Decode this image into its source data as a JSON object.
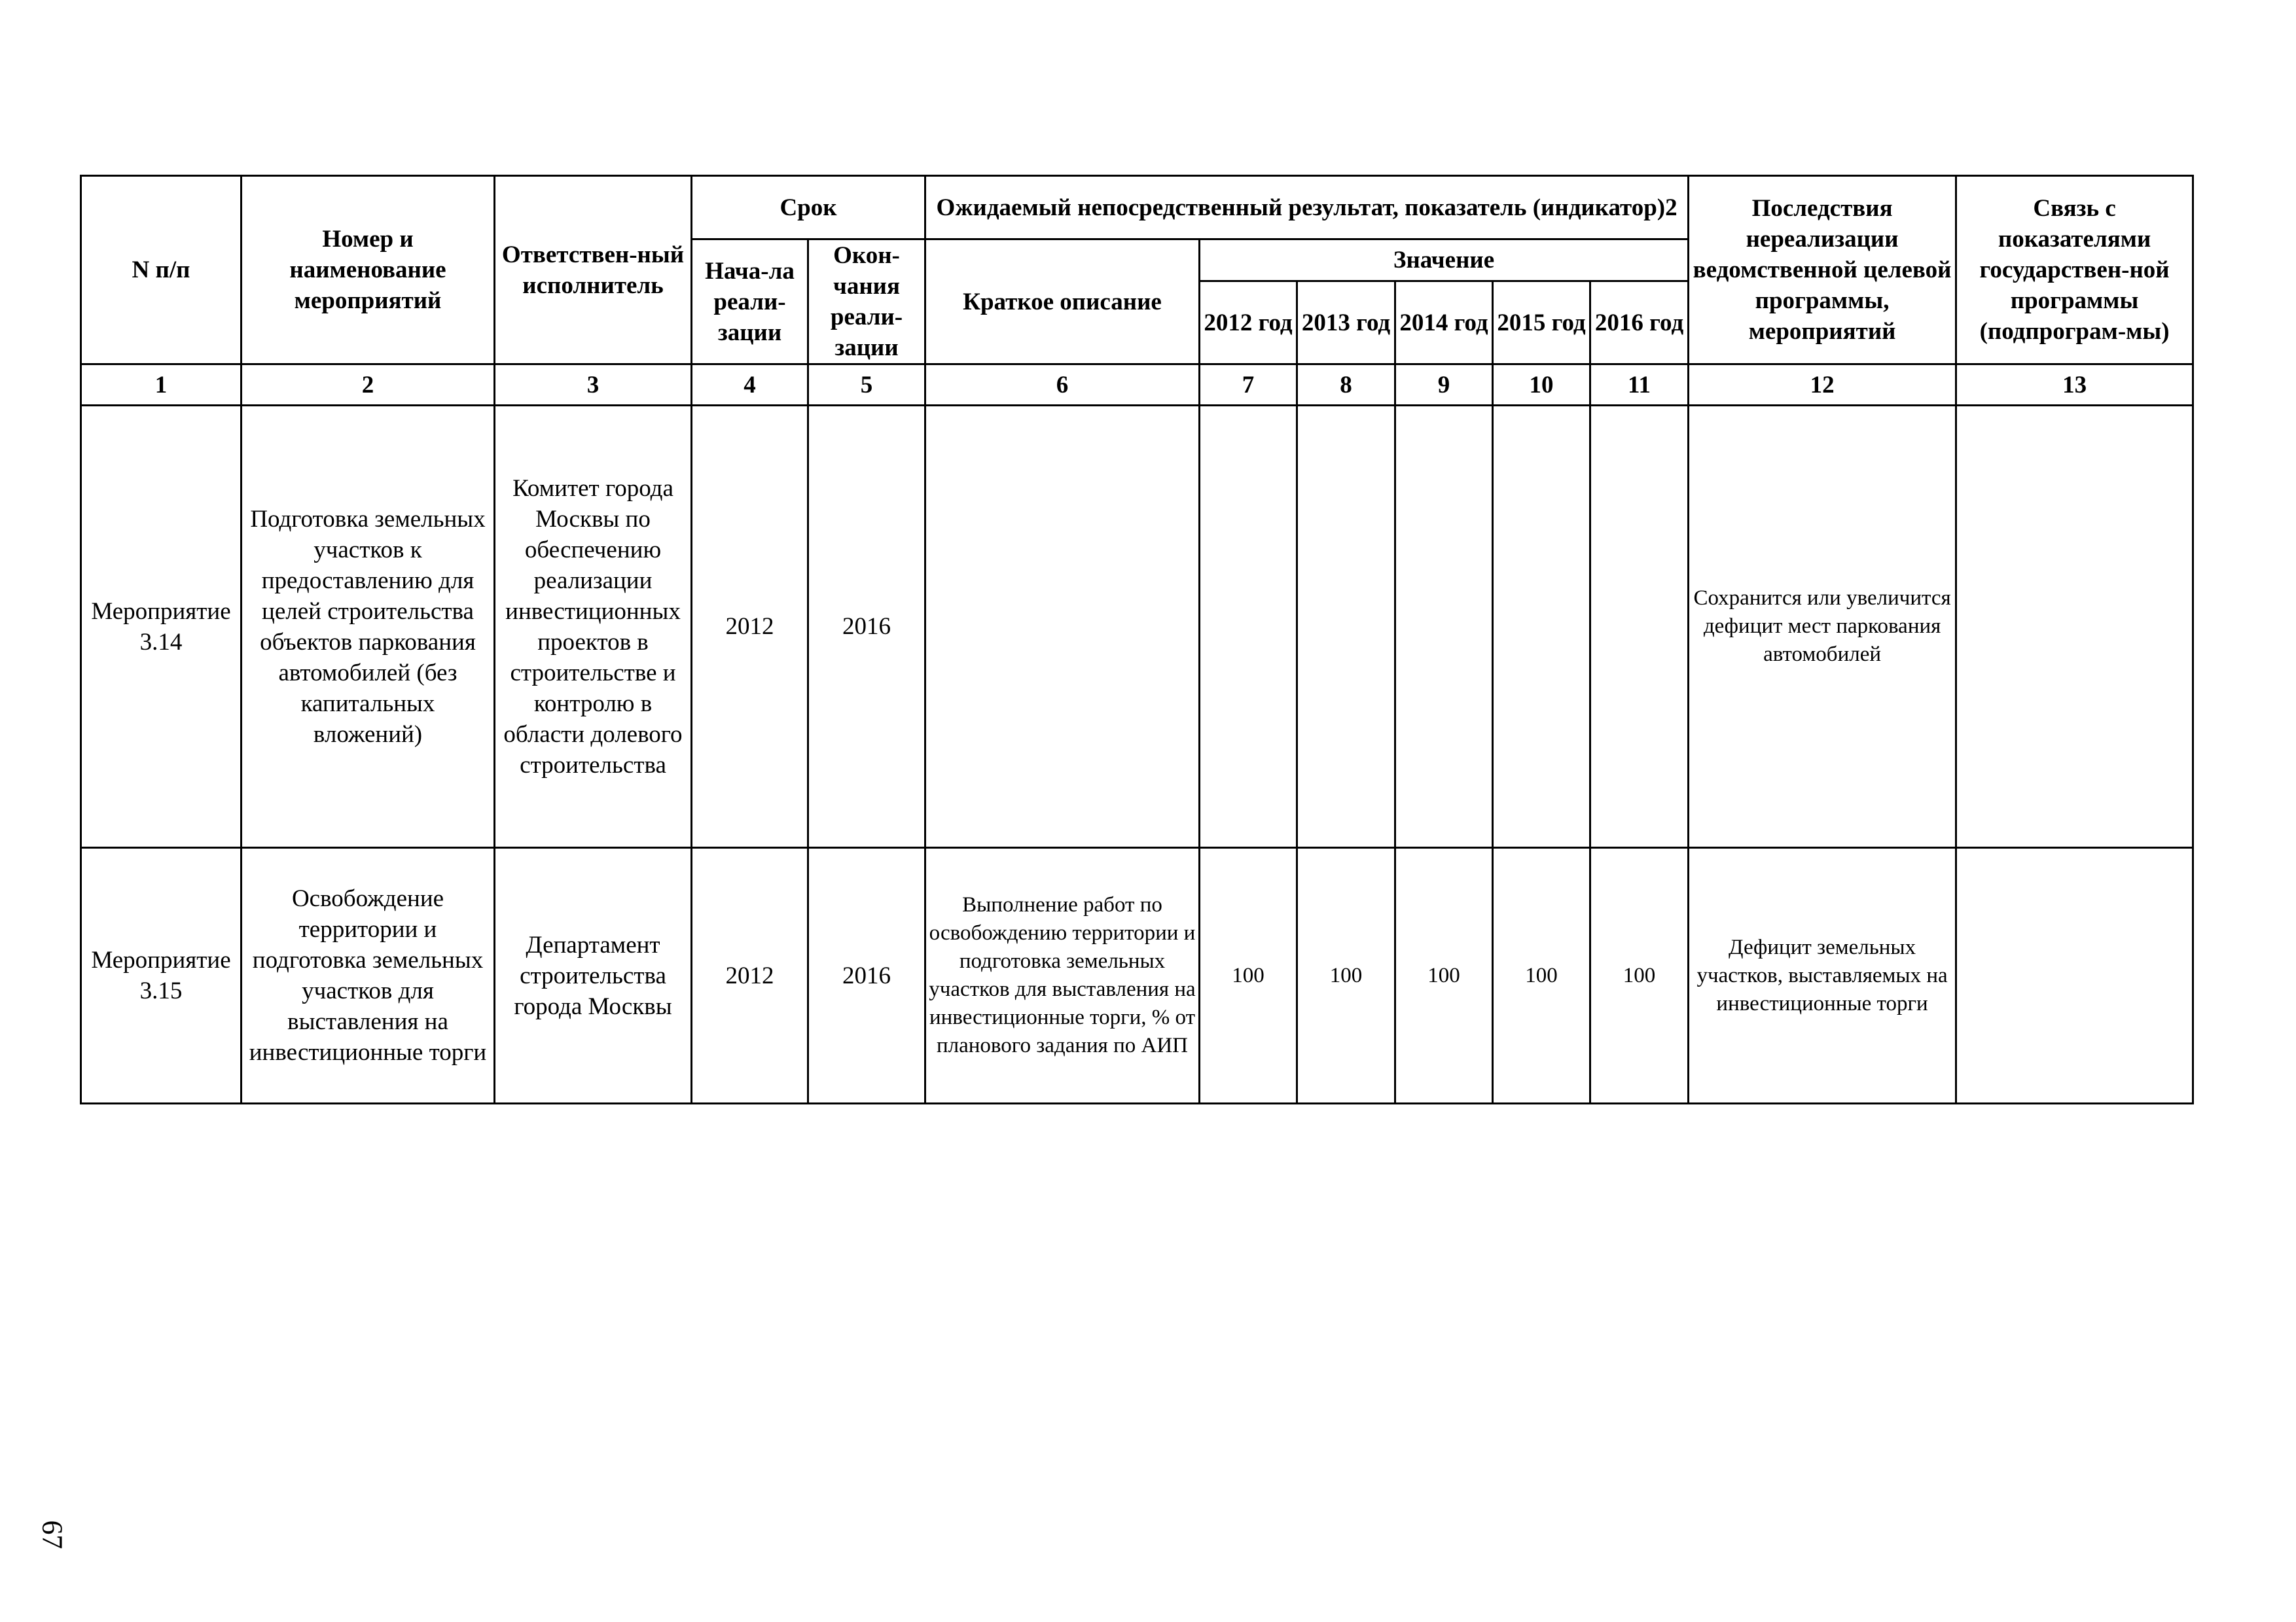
{
  "header": {
    "col_num": "N  п/п",
    "col_name": "Номер и наименование мероприятий",
    "col_resp": "Ответствен-ный исполнитель",
    "srok": "Срок",
    "srok_start": "Нача-ла реали-зации",
    "srok_end": "Окон-чания реали-зации",
    "result": "Ожидаемый непосредственный результат, показатель (индикатор)2",
    "short_desc": "Краткое описание",
    "value": "Значение",
    "years": [
      "2012 год",
      "2013 год",
      "2014 год",
      "2015 год",
      "2016 год"
    ],
    "consequences": "Последствия нереализации ведомственной целевой программы, мероприятий",
    "link": "Связь с показателями государствен-ной  программы (подпрограм-мы)"
  },
  "column_numbers": [
    "1",
    "2",
    "3",
    "4",
    "5",
    "6",
    "7",
    "8",
    "9",
    "10",
    "11",
    "12",
    "13"
  ],
  "rows": [
    {
      "num": "Мероприятие 3.14",
      "name": "Подготовка земельных участков к предоставлению для целей строительства объектов паркования автомобилей (без капитальных вложений)",
      "resp": "Комитет города Москвы по обеспечению реализации инвестиционных проектов в строительстве и контролю в области долевого строительства",
      "start": "2012",
      "end": "2016",
      "desc": "",
      "values": [
        "",
        "",
        "",
        "",
        ""
      ],
      "consequences": "Сохранится или увеличится дефицит мест паркования автомобилей",
      "link": ""
    },
    {
      "num": "Мероприятие 3.15",
      "name": "Освобождение территории и подготовка земельных участков для выставления на инвестиционные торги",
      "resp": "Департамент строительства города Москвы",
      "start": "2012",
      "end": "2016",
      "desc": "Выполнение работ по освобождению территории и подготовка земельных участков для выставления на инвестиционные торги, % от планового задания по АИП",
      "values": [
        "100",
        "100",
        "100",
        "100",
        "100"
      ],
      "consequences": "Дефицит земельных участков, выставляемых на инвестиционные торги",
      "link": ""
    }
  ],
  "page_number": "67"
}
